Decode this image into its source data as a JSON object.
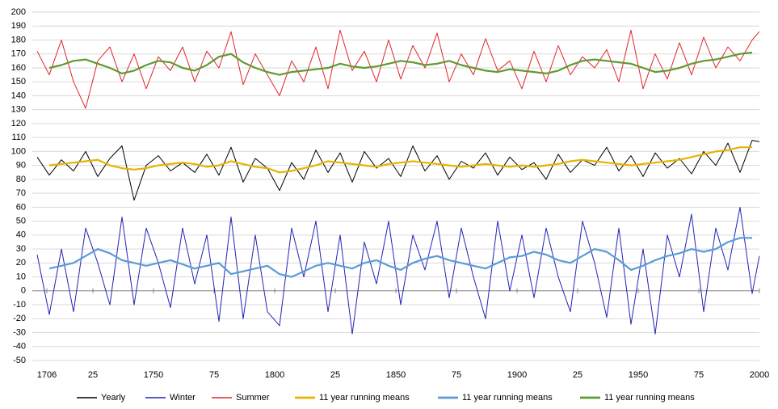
{
  "chart_data": {
    "type": "line",
    "x": [
      1702,
      1707,
      1712,
      1717,
      1722,
      1727,
      1732,
      1737,
      1742,
      1747,
      1752,
      1757,
      1762,
      1767,
      1772,
      1777,
      1782,
      1787,
      1792,
      1797,
      1802,
      1807,
      1812,
      1817,
      1822,
      1827,
      1832,
      1837,
      1842,
      1847,
      1852,
      1857,
      1862,
      1867,
      1872,
      1877,
      1882,
      1887,
      1892,
      1897,
      1902,
      1907,
      1912,
      1917,
      1922,
      1927,
      1932,
      1937,
      1942,
      1947,
      1952,
      1957,
      1962,
      1967,
      1972,
      1977,
      1982,
      1987,
      1992,
      1997,
      2000
    ],
    "series": [
      {
        "name": "Yearly",
        "color": "#000000",
        "width": 1,
        "values": [
          96,
          83,
          94,
          86,
          100,
          82,
          95,
          104,
          65,
          90,
          97,
          86,
          92,
          85,
          98,
          83,
          103,
          78,
          95,
          88,
          72,
          92,
          80,
          101,
          85,
          99,
          78,
          100,
          88,
          95,
          82,
          104,
          86,
          97,
          80,
          93,
          88,
          99,
          83,
          96,
          87,
          92,
          80,
          98,
          85,
          94,
          90,
          103,
          86,
          97,
          82,
          99,
          88,
          95,
          84,
          100,
          90,
          106,
          85,
          108,
          107
        ]
      },
      {
        "name": "Winter",
        "color": "#2323b8",
        "width": 1,
        "values": [
          26,
          -17,
          30,
          -15,
          45,
          20,
          -10,
          53,
          -10,
          45,
          20,
          -12,
          45,
          5,
          40,
          -22,
          53,
          -20,
          40,
          -15,
          -25,
          45,
          10,
          50,
          -15,
          40,
          -31,
          35,
          5,
          50,
          -10,
          40,
          15,
          50,
          -5,
          45,
          10,
          -20,
          50,
          0,
          40,
          -5,
          45,
          10,
          -15,
          50,
          20,
          -19,
          45,
          -24,
          30,
          -31,
          40,
          10,
          55,
          -15,
          45,
          15,
          60,
          -2,
          25
        ]
      },
      {
        "name": "Summer",
        "color": "#e0262b",
        "width": 1,
        "values": [
          172,
          155,
          180,
          150,
          131,
          165,
          175,
          150,
          170,
          145,
          168,
          158,
          175,
          150,
          172,
          160,
          186,
          148,
          170,
          155,
          140,
          165,
          150,
          175,
          145,
          187,
          158,
          172,
          150,
          180,
          152,
          176,
          160,
          185,
          150,
          170,
          155,
          181,
          158,
          165,
          145,
          172,
          150,
          176,
          155,
          168,
          160,
          173,
          150,
          187,
          145,
          170,
          152,
          178,
          155,
          182,
          160,
          175,
          165,
          180,
          186
        ]
      },
      {
        "name": "11 year running means",
        "color": "#e6b400",
        "width": 2.2,
        "values": [
          null,
          90,
          91,
          92,
          93,
          94,
          90,
          88,
          87,
          88,
          90,
          91,
          92,
          91,
          89,
          90,
          93,
          91,
          89,
          88,
          85,
          86,
          88,
          90,
          93,
          92,
          91,
          90,
          89,
          91,
          92,
          93,
          92,
          91,
          90,
          89,
          90,
          91,
          90,
          89,
          90,
          89,
          90,
          91,
          93,
          94,
          93,
          92,
          91,
          90,
          91,
          92,
          93,
          94,
          96,
          98,
          100,
          101,
          103,
          103,
          null
        ]
      },
      {
        "name": "11 year running means",
        "color": "#5b9bd5",
        "width": 2.2,
        "values": [
          null,
          16,
          18,
          20,
          25,
          30,
          27,
          22,
          20,
          18,
          20,
          22,
          19,
          16,
          18,
          20,
          12,
          14,
          16,
          18,
          12,
          10,
          14,
          18,
          20,
          18,
          16,
          20,
          22,
          18,
          15,
          20,
          23,
          25,
          22,
          20,
          18,
          16,
          20,
          24,
          25,
          28,
          26,
          22,
          20,
          25,
          30,
          28,
          22,
          15,
          18,
          22,
          25,
          27,
          30,
          28,
          30,
          35,
          38,
          38,
          null
        ]
      },
      {
        "name": "11 year running means",
        "color": "#5e9b32",
        "width": 2.2,
        "values": [
          null,
          160,
          162,
          165,
          166,
          163,
          160,
          156,
          158,
          162,
          165,
          164,
          160,
          158,
          162,
          168,
          170,
          164,
          160,
          157,
          155,
          157,
          158,
          159,
          160,
          163,
          161,
          160,
          161,
          163,
          165,
          164,
          162,
          163,
          165,
          162,
          160,
          158,
          157,
          159,
          158,
          157,
          156,
          158,
          162,
          165,
          166,
          165,
          164,
          163,
          160,
          157,
          158,
          160,
          163,
          165,
          166,
          168,
          170,
          171,
          null
        ]
      }
    ],
    "xlim": [
      1700,
      2000
    ],
    "xticks": [
      1706,
      {
        "value": 1725,
        "label": "25"
      },
      1750,
      {
        "value": 1775,
        "label": "75"
      },
      1800,
      {
        "value": 1825,
        "label": "25"
      },
      1850,
      {
        "value": 1875,
        "label": "75"
      },
      1900,
      {
        "value": 1925,
        "label": "25"
      },
      1950,
      {
        "value": 1975,
        "label": "75"
      },
      2000
    ],
    "ylim": [
      -50,
      200
    ],
    "yticks": [
      -50,
      -40,
      -30,
      -20,
      -10,
      0,
      10,
      20,
      30,
      40,
      50,
      60,
      70,
      80,
      90,
      100,
      110,
      120,
      130,
      140,
      150,
      160,
      170,
      180,
      190,
      200
    ],
    "grid": true
  }
}
